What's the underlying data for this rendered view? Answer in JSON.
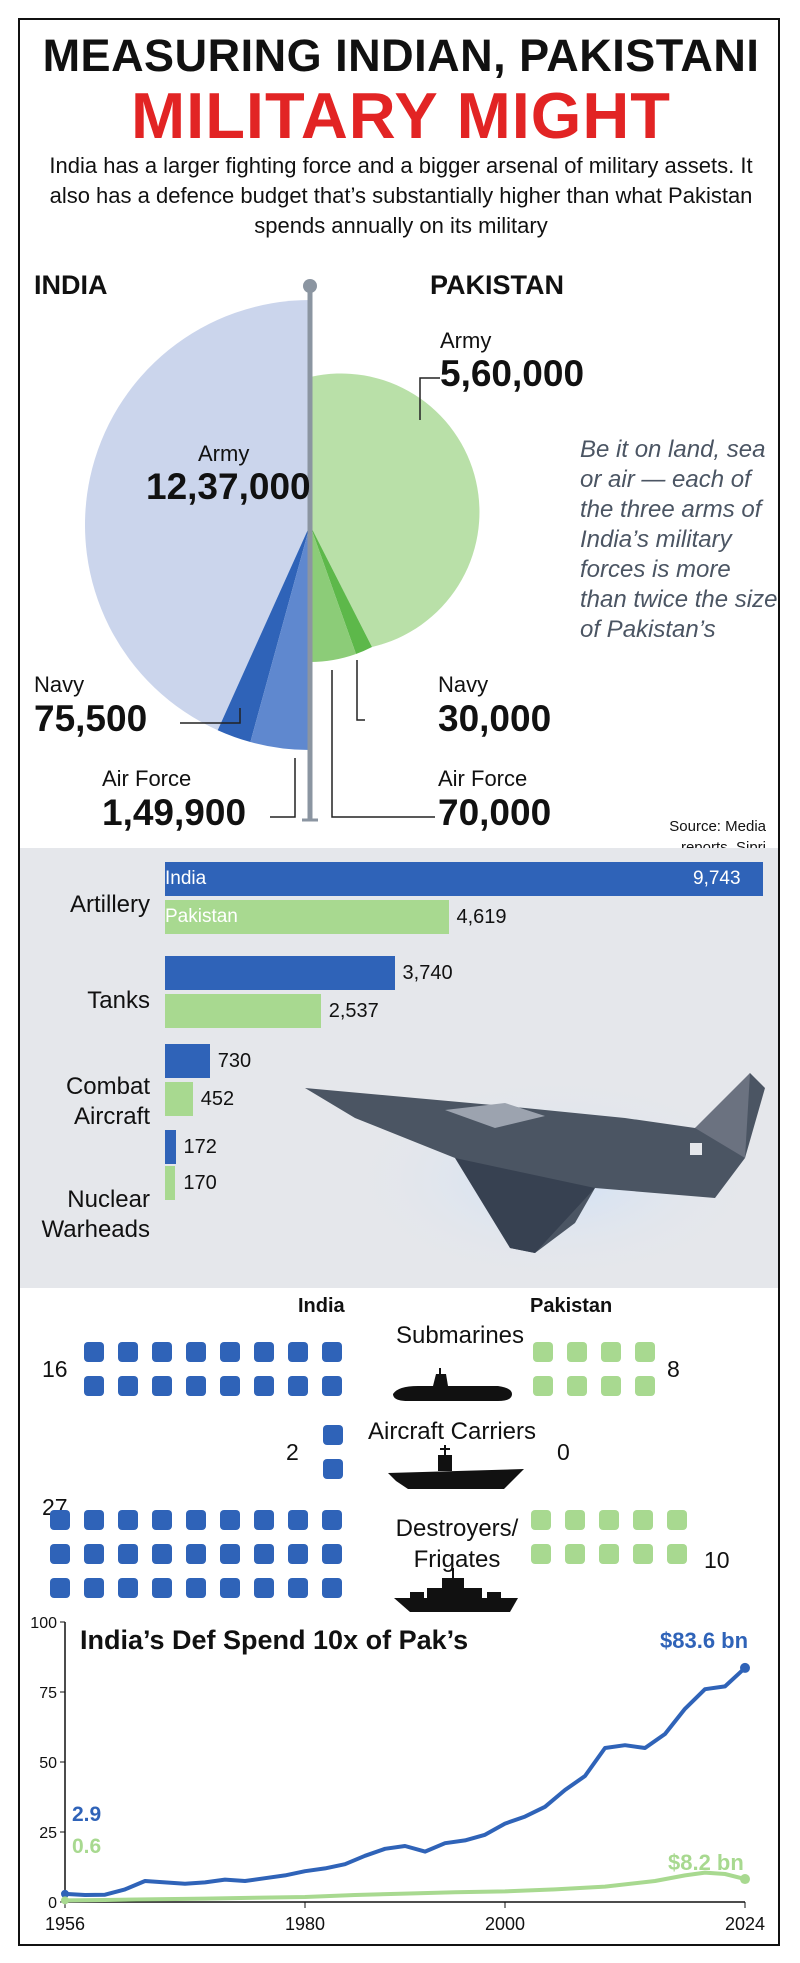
{
  "header": {
    "title_line1": "MEASURING INDIAN, PAKISTANI",
    "title_line2": "MILITARY MIGHT",
    "intro": "India has a larger fighting force and a bigger arsenal of military assets. It also has a defence budget that’s substantially higher than what Pakistan spends annually on its military"
  },
  "forces": {
    "india_label": "INDIA",
    "pakistan_label": "PAKISTAN",
    "india": {
      "army_label": "Army",
      "army_value": "12,37,000",
      "navy_label": "Navy",
      "navy_value": "75,500",
      "airforce_label": "Air Force",
      "airforce_value": "1,49,900"
    },
    "pakistan": {
      "army_label": "Army",
      "army_value": "5,60,000",
      "navy_label": "Navy",
      "navy_value": "30,000",
      "airforce_label": "Air Force",
      "airforce_value": "70,000"
    },
    "note": "Be it on land, sea or air — each of the three arms of India’s military forces is more than twice the size of Pakistan’s",
    "source": "Source: Media reports, Sipri",
    "colors": {
      "india_army": "#cbd5ec",
      "india_navy": "#2f63b8",
      "india_airforce": "#5f88cf",
      "pak_army": "#b9e0a8",
      "pak_navy": "#5db84a",
      "pak_airforce": "#8ccc78"
    }
  },
  "chart_data": [
    {
      "type": "pie",
      "title": "",
      "series": [
        {
          "name": "INDIA",
          "categories": [
            "Army",
            "Navy",
            "Air Force"
          ],
          "values": [
            1237000,
            75500,
            149900
          ]
        },
        {
          "name": "PAKISTAN",
          "categories": [
            "Army",
            "Navy",
            "Air Force"
          ],
          "values": [
            560000,
            30000,
            70000
          ]
        }
      ]
    },
    {
      "type": "bar",
      "orientation": "horizontal",
      "categories": [
        "Artillery",
        "Tanks",
        "Combat Aircraft",
        "Nuclear Warheads"
      ],
      "series": [
        {
          "name": "India",
          "values": [
            9743,
            3740,
            730,
            172
          ],
          "color": "#2f63b8"
        },
        {
          "name": "Pakistan",
          "values": [
            4619,
            2537,
            452,
            170
          ],
          "color": "#a8d990"
        }
      ],
      "value_labels": {
        "India": [
          "9,743",
          "3,740",
          "730",
          "172"
        ],
        "Pakistan": [
          "4,619",
          "2,537",
          "452",
          "170"
        ]
      }
    },
    {
      "type": "bar",
      "subtype": "pictogram",
      "categories": [
        "Submarines",
        "Aircraft Carriers",
        "Destroyers/ Frigates"
      ],
      "series": [
        {
          "name": "India",
          "values": [
            16,
            2,
            27
          ],
          "color": "#2f63b8"
        },
        {
          "name": "Pakistan",
          "values": [
            8,
            0,
            10
          ],
          "color": "#a8d990"
        }
      ]
    },
    {
      "type": "line",
      "title": "India’s Def Spend 10x of Pak’s",
      "x_ticks": [
        "1956",
        "1980",
        "2000",
        "2024"
      ],
      "y_ticks": [
        "100",
        "75",
        "50",
        "25",
        "0"
      ],
      "xlim": [
        1956,
        2024
      ],
      "ylim": [
        0,
        100
      ],
      "series": [
        {
          "name": "India",
          "color": "#2f63b8",
          "x": [
            1956,
            1958,
            1960,
            1962,
            1964,
            1966,
            1968,
            1970,
            1972,
            1974,
            1976,
            1978,
            1980,
            1982,
            1984,
            1986,
            1988,
            1990,
            1992,
            1994,
            1996,
            1998,
            2000,
            2002,
            2004,
            2006,
            2008,
            2010,
            2012,
            2014,
            2016,
            2018,
            2020,
            2022,
            2024
          ],
          "y": [
            2.9,
            2.5,
            2.6,
            4.5,
            7.5,
            7.0,
            6.5,
            7.0,
            8.0,
            7.5,
            8.5,
            9.5,
            11,
            12,
            13.5,
            16.5,
            19,
            20,
            18,
            21,
            22,
            24,
            28,
            30.5,
            34,
            40,
            45,
            55,
            56,
            55,
            60,
            69,
            76,
            77,
            83.6
          ]
        },
        {
          "name": "Pakistan",
          "color": "#a8d990",
          "x": [
            1956,
            1960,
            1965,
            1970,
            1975,
            1980,
            1985,
            1990,
            1995,
            2000,
            2005,
            2010,
            2015,
            2018,
            2020,
            2022,
            2024
          ],
          "y": [
            0.6,
            0.7,
            1.0,
            1.2,
            1.5,
            1.8,
            2.5,
            3.0,
            3.5,
            3.8,
            4.5,
            5.5,
            7.5,
            9.5,
            10.5,
            10.0,
            8.2
          ]
        }
      ],
      "end_labels": {
        "India": "$83.6 bn",
        "Pakistan": "$8.2 bn"
      },
      "start_labels": {
        "India": "2.9",
        "Pakistan": "0.6"
      }
    }
  ],
  "arsenal": {
    "artillery_label": "Artillery",
    "tanks_label": "Tanks",
    "combat_aircraft_label": "Combat Aircraft",
    "nuclear_label": "Nuclear Warheads",
    "legend_india": "India",
    "legend_pakistan": "Pakistan"
  },
  "naval": {
    "india_header": "India",
    "pakistan_header": "Pakistan",
    "submarines_label": "Submarines",
    "submarines_india": "16",
    "submarines_pakistan": "8",
    "carriers_label": "Aircraft Carriers",
    "carriers_india": "2",
    "carriers_pakistan": "0",
    "destroyers_label": "Destroyers/ Frigates",
    "destroyers_india": "27",
    "destroyers_pakistan": "10"
  },
  "spend": {
    "title": "India’s Def Spend 10x of Pak’s",
    "india_end": "$83.6 bn",
    "pak_end": "$8.2 bn",
    "india_start": "2.9",
    "pak_start": "0.6"
  }
}
